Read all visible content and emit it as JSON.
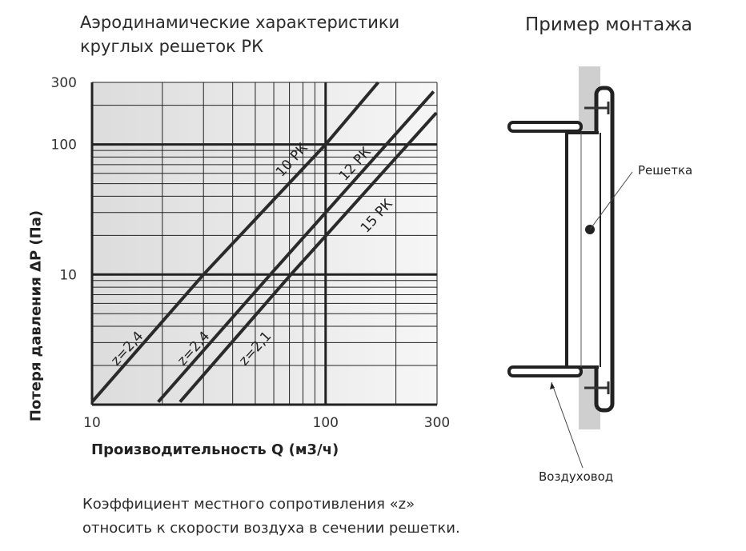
{
  "header": {
    "title_line1": "Аэродинамические характеристики",
    "title_line2": "круглых решеток РК",
    "mount_title": "Пример монтажа"
  },
  "chart_data": {
    "type": "line",
    "title": "Аэродинамические характеристики круглых решеток РК",
    "xlabel": "Производительность Q (м3/ч)",
    "ylabel": "Потеря давления  ΔP (Па)",
    "x_scale": "log",
    "y_scale": "log",
    "xlim": [
      10,
      300
    ],
    "ylim": [
      1,
      300
    ],
    "x_ticks": [
      10,
      100,
      300
    ],
    "x_tick_labels": [
      "10",
      "100",
      "300"
    ],
    "y_ticks": [
      10,
      100,
      300
    ],
    "y_tick_labels": [
      "10",
      "100",
      "300"
    ],
    "grid": true,
    "series": [
      {
        "name": "10 РК",
        "coefficient": "z=2,4",
        "x": [
          10,
          30,
          100,
          168
        ],
        "y": [
          1.05,
          10,
          100,
          300
        ]
      },
      {
        "name": "12 РК",
        "coefficient": "z=2,4",
        "x": [
          19.2,
          58,
          290
        ],
        "y": [
          1.05,
          10,
          255
        ]
      },
      {
        "name": "15 РК",
        "coefficient": "z=2,1",
        "x": [
          23.8,
          71,
          298
        ],
        "y": [
          1.05,
          10,
          175
        ]
      }
    ]
  },
  "diagram": {
    "grille_label": "Решетка",
    "duct_label": "Воздуховод"
  },
  "footer": {
    "note_line1": "Коэффициент  местного сопротивления «z»",
    "note_line2": "относить к скорости воздуха в сечении решетки."
  }
}
